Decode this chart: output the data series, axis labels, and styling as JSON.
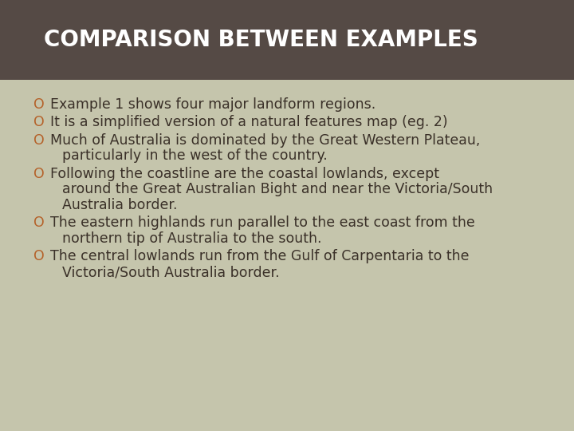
{
  "title": "COMPARISON BETWEEN EXAMPLES",
  "title_bg_color": "#554a45",
  "title_text_color": "#ffffff",
  "body_bg_color": "#c5c5ac",
  "bullet_color": "#b5622a",
  "text_color": "#3a3028",
  "items": [
    {
      "lines": [
        "Example 1 shows four major landform regions."
      ]
    },
    {
      "lines": [
        "It is a simplified version of a natural features map (eg. 2)"
      ]
    },
    {
      "lines": [
        "Much of Australia is dominated by the Great Western Plateau,",
        "  particularly in the west of the country."
      ]
    },
    {
      "lines": [
        "Following the coastline are the coastal lowlands, except",
        "  around the Great Australian Bight and near the Victoria/South",
        "  Australia border."
      ]
    },
    {
      "lines": [
        "The eastern highlands run parallel to the east coast from the",
        "  northern tip of Australia to the south."
      ]
    },
    {
      "lines": [
        "The central lowlands run from the Gulf of Carpentaria to the",
        "  Victoria/South Australia border."
      ]
    }
  ],
  "fig_width": 7.2,
  "fig_height": 5.4,
  "dpi": 100
}
